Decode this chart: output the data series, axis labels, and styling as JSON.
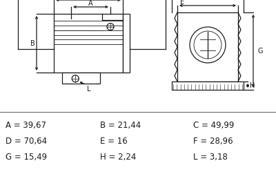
{
  "bg_color": "#ffffff",
  "line_color": "#1a1a1a",
  "dim_rows": [
    [
      "A = 39,67",
      "B = 21,44",
      "C = 49,99"
    ],
    [
      "D = 70,64",
      "E = 16",
      "F = 28,96"
    ],
    [
      "G = 15,49",
      "H = 2,24",
      "L = 3,18"
    ]
  ]
}
